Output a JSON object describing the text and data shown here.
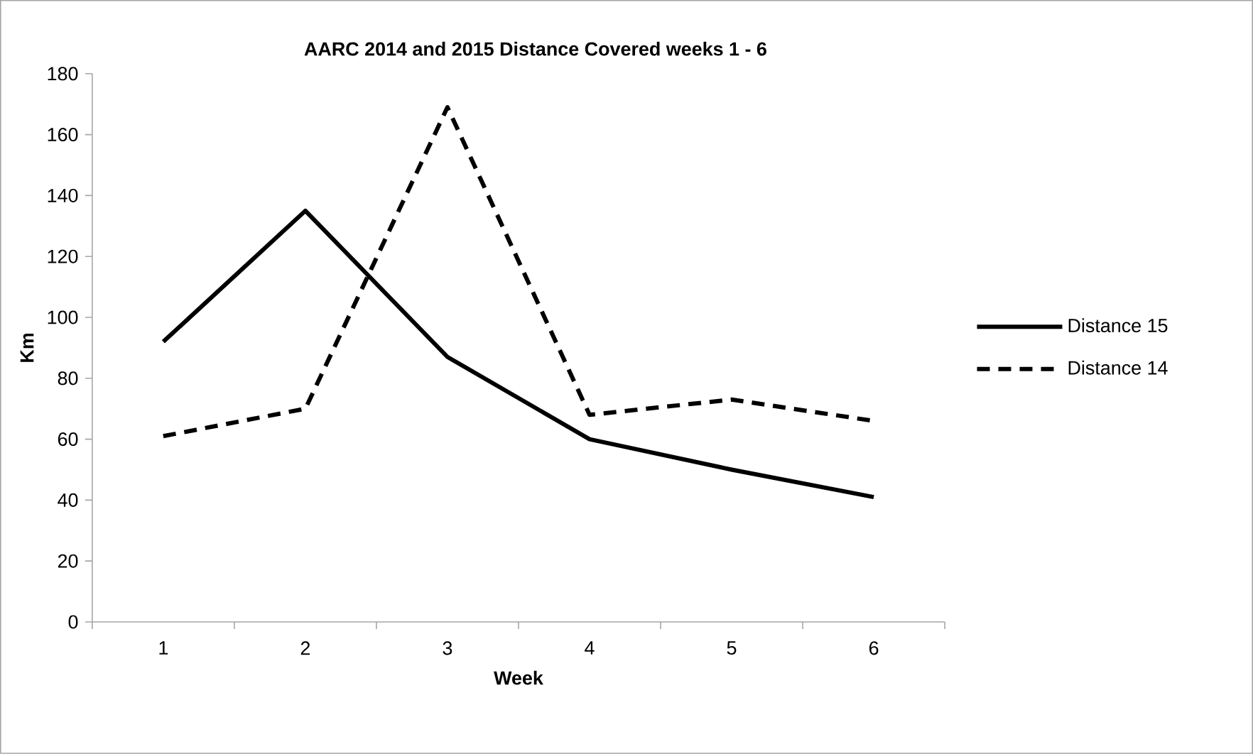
{
  "chart_data": {
    "type": "line",
    "title": "AARC 2014 and 2015 Distance Covered weeks 1 - 6",
    "xlabel": "Week",
    "ylabel": "Km",
    "categories": [
      "1",
      "2",
      "3",
      "4",
      "5",
      "6"
    ],
    "series": [
      {
        "name": "Distance 15",
        "color": "#000000",
        "line_style": "solid",
        "values": [
          92,
          135,
          87,
          60,
          50,
          41
        ]
      },
      {
        "name": "Distance 14",
        "color": "#000000",
        "line_style": "dashed",
        "values": [
          61,
          70,
          169,
          68,
          73,
          66
        ]
      }
    ],
    "ylim": [
      0,
      180
    ],
    "yticks": [
      0,
      20,
      40,
      60,
      80,
      100,
      120,
      140,
      160,
      180
    ],
    "grid": false,
    "legend": "right",
    "marker": "none"
  }
}
